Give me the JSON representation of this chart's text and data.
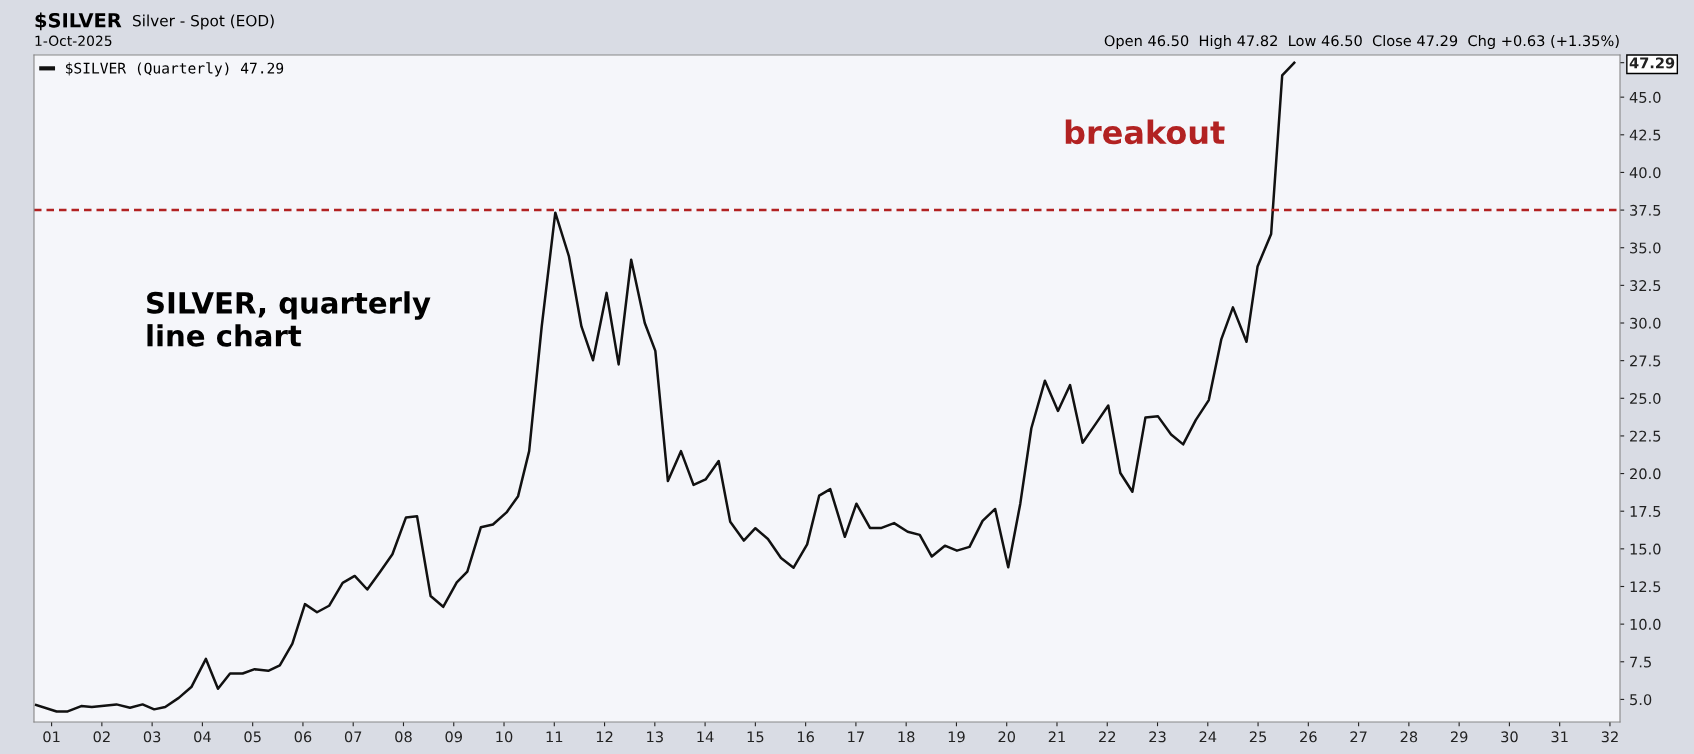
{
  "chart_data": {
    "type": "line",
    "title": "$SILVER",
    "subtitle": "Silver - Spot (EOD)",
    "annotations": [
      "1-Oct-2025",
      "Open 46.50  High 47.82  Low 46.50  Close 47.29  Chg +0.63 (+1.35%)",
      "SILVER, quarterly\nline chart",
      "breakout"
    ],
    "x": [
      2000.69,
      2001.1,
      2001.32,
      2001.59,
      2001.8,
      2002.29,
      2002.56,
      2002.81,
      2003.04,
      2003.26,
      2003.53,
      2003.78,
      2004.07,
      2004.31,
      2004.55,
      2004.8,
      2005.04,
      2005.31,
      2005.54,
      2005.79,
      2006.04,
      2006.28,
      2006.52,
      2006.79,
      2007.03,
      2007.28,
      2007.54,
      2007.78,
      2008.05,
      2008.27,
      2008.54,
      2008.79,
      2009.06,
      2009.27,
      2009.54,
      2009.78,
      2010.05,
      2010.28,
      2010.5,
      2010.75,
      2011.02,
      2011.29,
      2011.54,
      2011.77,
      2012.04,
      2012.28,
      2012.53,
      2012.8,
      2013.01,
      2013.26,
      2013.52,
      2013.77,
      2014.01,
      2014.27,
      2014.5,
      2014.77,
      2015.0,
      2015.25,
      2015.51,
      2015.76,
      2016.03,
      2016.27,
      2016.49,
      2016.78,
      2017.01,
      2017.28,
      2017.51,
      2017.76,
      2018.03,
      2018.27,
      2018.51,
      2018.77,
      2019.01,
      2019.26,
      2019.52,
      2019.77,
      2020.03,
      2020.27,
      2020.49,
      2020.76,
      2021.02,
      2021.26,
      2021.51,
      2021.77,
      2022.02,
      2022.26,
      2022.5,
      2022.76,
      2023.01,
      2023.27,
      2023.51,
      2023.76,
      2024.02,
      2024.27,
      2024.5,
      2024.77,
      2024.99,
      2025.26,
      2025.48,
      2025.72
    ],
    "series": [
      {
        "name": "$SILVER (Quarterly) 47.29",
        "color": "#111111",
        "values": [
          4.63,
          4.2,
          4.2,
          4.56,
          4.5,
          4.67,
          4.45,
          4.67,
          4.34,
          4.5,
          5.1,
          5.82,
          7.69,
          5.71,
          6.72,
          6.72,
          7.01,
          6.9,
          7.26,
          8.7,
          11.33,
          10.79,
          11.22,
          12.74,
          13.2,
          12.3,
          13.49,
          14.64,
          17.09,
          17.16,
          11.87,
          11.15,
          12.77,
          13.49,
          16.44,
          16.62,
          17.42,
          18.5,
          21.49,
          29.77,
          37.33,
          34.45,
          29.77,
          27.53,
          32.0,
          27.25,
          34.2,
          30.0,
          28.15,
          19.5,
          21.49,
          19.25,
          19.61,
          20.83,
          16.8,
          15.55,
          16.37,
          15.65,
          14.39,
          13.75,
          15.3,
          18.54,
          18.97,
          15.8,
          18.0,
          16.39,
          16.39,
          16.71,
          16.14,
          15.93,
          14.49,
          15.21,
          14.88,
          15.13,
          16.86,
          17.65,
          13.78,
          18.0,
          23.01,
          26.17,
          24.16,
          25.88,
          22.05,
          23.3,
          24.52,
          20.04,
          18.79,
          23.73,
          23.8,
          22.59,
          21.94,
          23.55,
          24.88,
          28.93,
          31.04,
          28.75,
          33.76,
          35.91,
          46.44,
          47.29
        ]
      }
    ],
    "xlim": [
      2000.65,
      2032.2
    ],
    "xticks": [
      {
        "value": 2001,
        "label": "01"
      },
      {
        "value": 2002,
        "label": "02"
      },
      {
        "value": 2003,
        "label": "03"
      },
      {
        "value": 2004,
        "label": "04"
      },
      {
        "value": 2005,
        "label": "05"
      },
      {
        "value": 2006,
        "label": "06"
      },
      {
        "value": 2007,
        "label": "07"
      },
      {
        "value": 2008,
        "label": "08"
      },
      {
        "value": 2009,
        "label": "09"
      },
      {
        "value": 2010,
        "label": "10"
      },
      {
        "value": 2011,
        "label": "11"
      },
      {
        "value": 2012,
        "label": "12"
      },
      {
        "value": 2013,
        "label": "13"
      },
      {
        "value": 2014,
        "label": "14"
      },
      {
        "value": 2015,
        "label": "15"
      },
      {
        "value": 2016,
        "label": "16"
      },
      {
        "value": 2017,
        "label": "17"
      },
      {
        "value": 2018,
        "label": "18"
      },
      {
        "value": 2019,
        "label": "19"
      },
      {
        "value": 2020,
        "label": "20"
      },
      {
        "value": 2021,
        "label": "21"
      },
      {
        "value": 2022,
        "label": "22"
      },
      {
        "value": 2023,
        "label": "23"
      },
      {
        "value": 2024,
        "label": "24"
      },
      {
        "value": 2025,
        "label": "25"
      },
      {
        "value": 2026,
        "label": "26"
      },
      {
        "value": 2027,
        "label": "27"
      },
      {
        "value": 2028,
        "label": "28"
      },
      {
        "value": 2029,
        "label": "29"
      },
      {
        "value": 2030,
        "label": "30"
      },
      {
        "value": 2031,
        "label": "31"
      },
      {
        "value": 2032,
        "label": "32"
      }
    ],
    "ylim": [
      3.5,
      47.8
    ],
    "yticks": [
      {
        "value": 5,
        "label": "5.0"
      },
      {
        "value": 7.5,
        "label": "7.5"
      },
      {
        "value": 10,
        "label": "10.0"
      },
      {
        "value": 12.5,
        "label": "12.5"
      },
      {
        "value": 15,
        "label": "15.0"
      },
      {
        "value": 17.5,
        "label": "17.5"
      },
      {
        "value": 20,
        "label": "20.0"
      },
      {
        "value": 22.5,
        "label": "22.5"
      },
      {
        "value": 25,
        "label": "25.0"
      },
      {
        "value": 27.5,
        "label": "27.5"
      },
      {
        "value": 30,
        "label": "30.0"
      },
      {
        "value": 32.5,
        "label": "32.5"
      },
      {
        "value": 35,
        "label": "35.0"
      },
      {
        "value": 37.5,
        "label": "37.5"
      },
      {
        "value": 40,
        "label": "40.0"
      },
      {
        "value": 42.5,
        "label": "42.5"
      },
      {
        "value": 45,
        "label": "45.0"
      },
      {
        "value": 47.29,
        "label": "47.29"
      }
    ],
    "ref_lines": [
      {
        "axis": "y",
        "value": 37.5,
        "color": "#b22222",
        "line_style": "dashed"
      }
    ],
    "grid": false,
    "legend": "top left",
    "marker": "none",
    "line_style": "solid"
  }
}
